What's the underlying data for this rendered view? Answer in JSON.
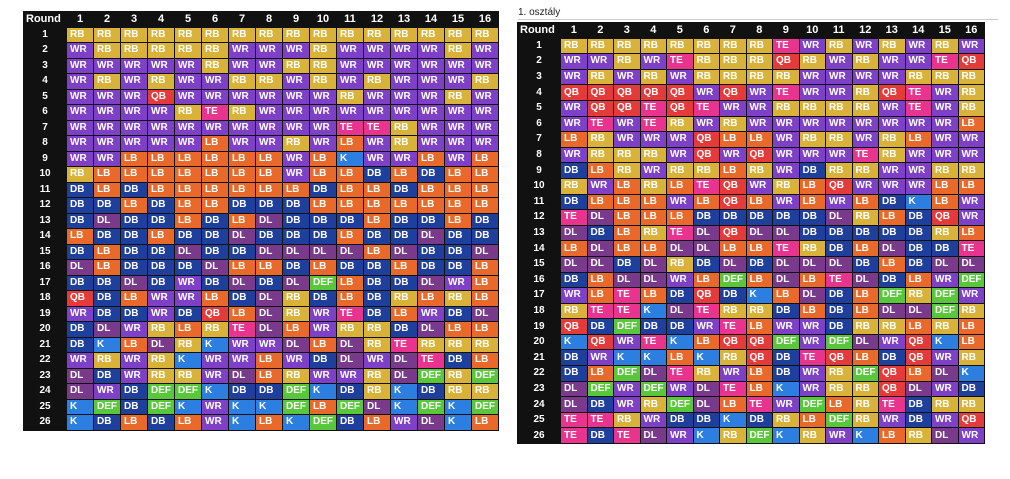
{
  "legend_colors": {
    "RB": "#d9b23a",
    "WR": "#7d40c6",
    "LB": "#e8692a",
    "DB": "#1f3f9c",
    "DL": "#7a3a8c",
    "TE": "#e8348f",
    "QB": "#e43a3a",
    "K": "#2c7fe0",
    "DEF": "#58c83a"
  },
  "left_table": {
    "header": [
      "Round",
      "1",
      "2",
      "3",
      "4",
      "5",
      "6",
      "7",
      "8",
      "9",
      "10",
      "11",
      "12",
      "13",
      "14",
      "15",
      "16"
    ],
    "rounds": [
      "1",
      "2",
      "3",
      "4",
      "5",
      "6",
      "7",
      "8",
      "9",
      "10",
      "11",
      "12",
      "13",
      "14",
      "15",
      "16",
      "17",
      "18",
      "19",
      "20",
      "21",
      "22",
      "23",
      "24",
      "25",
      "26"
    ],
    "rows": [
      [
        "RB",
        "RB",
        "RB",
        "RB",
        "RB",
        "RB",
        "RB",
        "RB",
        "RB",
        "RB",
        "RB",
        "RB",
        "RB",
        "RB",
        "RB",
        "RB"
      ],
      [
        "WR",
        "RB",
        "RB",
        "RB",
        "RB",
        "RB",
        "WR",
        "WR",
        "WR",
        "RB",
        "WR",
        "WR",
        "WR",
        "WR",
        "RB",
        "WR"
      ],
      [
        "WR",
        "WR",
        "WR",
        "WR",
        "WR",
        "RB",
        "WR",
        "WR",
        "RB",
        "RB",
        "WR",
        "WR",
        "WR",
        "WR",
        "WR",
        "WR"
      ],
      [
        "WR",
        "RB",
        "WR",
        "RB",
        "WR",
        "WR",
        "RB",
        "RB",
        "WR",
        "RB",
        "WR",
        "RB",
        "WR",
        "WR",
        "WR",
        "RB"
      ],
      [
        "WR",
        "WR",
        "WR",
        "QB",
        "WR",
        "WR",
        "WR",
        "WR",
        "WR",
        "WR",
        "RB",
        "WR",
        "WR",
        "WR",
        "RB",
        "WR"
      ],
      [
        "WR",
        "WR",
        "WR",
        "WR",
        "RB",
        "TE",
        "RB",
        "WR",
        "WR",
        "WR",
        "WR",
        "WR",
        "WR",
        "WR",
        "WR",
        "WR"
      ],
      [
        "WR",
        "WR",
        "WR",
        "WR",
        "WR",
        "WR",
        "WR",
        "WR",
        "WR",
        "WR",
        "TE",
        "TE",
        "RB",
        "WR",
        "WR",
        "WR"
      ],
      [
        "WR",
        "WR",
        "WR",
        "WR",
        "WR",
        "LB",
        "WR",
        "WR",
        "RB",
        "WR",
        "LB",
        "WR",
        "RB",
        "WR",
        "WR",
        "WR"
      ],
      [
        "WR",
        "WR",
        "LB",
        "LB",
        "LB",
        "LB",
        "LB",
        "LB",
        "WR",
        "LB",
        "K",
        "WR",
        "WR",
        "LB",
        "WR",
        "LB"
      ],
      [
        "RB",
        "LB",
        "LB",
        "LB",
        "LB",
        "LB",
        "LB",
        "LB",
        "WR",
        "LB",
        "LB",
        "DB",
        "LB",
        "DB",
        "LB",
        "LB"
      ],
      [
        "DB",
        "LB",
        "DB",
        "LB",
        "LB",
        "LB",
        "LB",
        "LB",
        "LB",
        "DB",
        "LB",
        "LB",
        "DB",
        "LB",
        "LB",
        "LB"
      ],
      [
        "DB",
        "DB",
        "LB",
        "DB",
        "LB",
        "LB",
        "DB",
        "DB",
        "DB",
        "LB",
        "LB",
        "LB",
        "LB",
        "LB",
        "LB",
        "LB"
      ],
      [
        "DB",
        "DL",
        "DB",
        "DB",
        "LB",
        "DB",
        "LB",
        "DL",
        "DB",
        "DB",
        "DB",
        "LB",
        "DB",
        "DB",
        "LB",
        "DB"
      ],
      [
        "LB",
        "DB",
        "DB",
        "LB",
        "DB",
        "DB",
        "DL",
        "DB",
        "DB",
        "DB",
        "LB",
        "DB",
        "DB",
        "DL",
        "DB",
        "DB"
      ],
      [
        "DB",
        "LB",
        "DB",
        "DB",
        "DL",
        "DB",
        "DB",
        "DL",
        "DL",
        "DL",
        "DL",
        "LB",
        "DL",
        "DB",
        "DB",
        "DL"
      ],
      [
        "DL",
        "LB",
        "DB",
        "DB",
        "DB",
        "DL",
        "LB",
        "LB",
        "DB",
        "LB",
        "DB",
        "DB",
        "LB",
        "DB",
        "DB",
        "LB"
      ],
      [
        "DB",
        "DB",
        "DL",
        "DB",
        "WR",
        "DB",
        "DL",
        "DB",
        "DL",
        "DEF",
        "LB",
        "DB",
        "DB",
        "DL",
        "WR",
        "LB"
      ],
      [
        "QB",
        "DB",
        "LB",
        "WR",
        "WR",
        "LB",
        "DB",
        "DL",
        "RB",
        "DB",
        "LB",
        "DB",
        "RB",
        "LB",
        "RB",
        "LB"
      ],
      [
        "WR",
        "DB",
        "DB",
        "WR",
        "DB",
        "QB",
        "LB",
        "DL",
        "RB",
        "WR",
        "TE",
        "DB",
        "LB",
        "WR",
        "DB",
        "DL"
      ],
      [
        "DB",
        "DL",
        "WR",
        "RB",
        "LB",
        "RB",
        "TE",
        "DL",
        "LB",
        "WR",
        "RB",
        "RB",
        "DB",
        "DL",
        "LB",
        "LB"
      ],
      [
        "DB",
        "K",
        "LB",
        "DL",
        "RB",
        "K",
        "WR",
        "WR",
        "DL",
        "LB",
        "DL",
        "RB",
        "TE",
        "RB",
        "RB",
        "RB"
      ],
      [
        "WR",
        "RB",
        "WR",
        "RB",
        "K",
        "WR",
        "WR",
        "LB",
        "WR",
        "DB",
        "DL",
        "WR",
        "DL",
        "TE",
        "DB",
        "LB"
      ],
      [
        "DL",
        "DB",
        "WR",
        "RB",
        "RB",
        "WR",
        "DL",
        "LB",
        "RB",
        "WR",
        "WR",
        "RB",
        "DL",
        "DEF",
        "RB",
        "DEF"
      ],
      [
        "DL",
        "WR",
        "DB",
        "DEF",
        "DEF",
        "K",
        "DB",
        "DB",
        "DEF",
        "K",
        "DB",
        "RB",
        "K",
        "DB",
        "RB",
        "RB"
      ],
      [
        "K",
        "DEF",
        "DB",
        "DEF",
        "K",
        "WR",
        "K",
        "K",
        "DEF",
        "LB",
        "DEF",
        "DL",
        "K",
        "DEF",
        "K",
        "DEF"
      ],
      [
        "K",
        "DB",
        "LB",
        "DB",
        "LB",
        "WR",
        "K",
        "LB",
        "K",
        "DEF",
        "DB",
        "LB",
        "WR",
        "DL",
        "K",
        "LB"
      ]
    ]
  },
  "right_table": {
    "caption": "1. osztály",
    "header": [
      "Round",
      "1",
      "2",
      "3",
      "4",
      "5",
      "6",
      "7",
      "8",
      "9",
      "10",
      "11",
      "12",
      "13",
      "14",
      "15",
      "16"
    ],
    "rounds": [
      "1",
      "2",
      "3",
      "4",
      "5",
      "6",
      "7",
      "8",
      "9",
      "10",
      "11",
      "12",
      "13",
      "14",
      "15",
      "16",
      "17",
      "18",
      "19",
      "20",
      "21",
      "22",
      "23",
      "24",
      "25",
      "26"
    ],
    "rows": [
      [
        "RB",
        "RB",
        "RB",
        "RB",
        "RB",
        "RB",
        "RB",
        "RB",
        "TE",
        "WR",
        "RB",
        "WR",
        "RB",
        "WR",
        "RB",
        "WR"
      ],
      [
        "WR",
        "WR",
        "RB",
        "WR",
        "TE",
        "RB",
        "RB",
        "RB",
        "QB",
        "RB",
        "WR",
        "RB",
        "WR",
        "WR",
        "TE",
        "QB"
      ],
      [
        "WR",
        "RB",
        "WR",
        "RB",
        "WR",
        "RB",
        "RB",
        "RB",
        "RB",
        "WR",
        "WR",
        "WR",
        "WR",
        "RB",
        "RB",
        "RB"
      ],
      [
        "QB",
        "QB",
        "QB",
        "QB",
        "QB",
        "WR",
        "QB",
        "WR",
        "TE",
        "WR",
        "WR",
        "RB",
        "QB",
        "TE",
        "WR",
        "RB"
      ],
      [
        "WR",
        "QB",
        "QB",
        "TE",
        "QB",
        "TE",
        "WR",
        "WR",
        "RB",
        "RB",
        "RB",
        "RB",
        "WR",
        "TE",
        "WR",
        "RB"
      ],
      [
        "WR",
        "TE",
        "WR",
        "TE",
        "RB",
        "WR",
        "RB",
        "WR",
        "WR",
        "WR",
        "WR",
        "WR",
        "WR",
        "WR",
        "WR",
        "LB"
      ],
      [
        "LB",
        "RB",
        "WR",
        "WR",
        "WR",
        "QB",
        "LB",
        "LB",
        "WR",
        "RB",
        "RB",
        "WR",
        "RB",
        "LB",
        "WR",
        "WR"
      ],
      [
        "WR",
        "RB",
        "RB",
        "RB",
        "WR",
        "QB",
        "WR",
        "QB",
        "WR",
        "WR",
        "WR",
        "TE",
        "RB",
        "WR",
        "WR",
        "WR"
      ],
      [
        "DB",
        "LB",
        "RB",
        "WR",
        "RB",
        "RB",
        "LB",
        "RB",
        "WR",
        "DB",
        "RB",
        "RB",
        "WR",
        "WR",
        "RB",
        "RB"
      ],
      [
        "RB",
        "WR",
        "LB",
        "RB",
        "LB",
        "TE",
        "QB",
        "WR",
        "RB",
        "LB",
        "QB",
        "WR",
        "WR",
        "WR",
        "LB",
        "LB"
      ],
      [
        "DB",
        "LB",
        "LB",
        "LB",
        "WR",
        "LB",
        "QB",
        "LB",
        "WR",
        "LB",
        "WR",
        "LB",
        "DB",
        "K",
        "LB",
        "WR"
      ],
      [
        "TE",
        "DL",
        "LB",
        "LB",
        "LB",
        "DB",
        "DB",
        "DB",
        "DB",
        "DB",
        "DL",
        "RB",
        "LB",
        "DB",
        "QB",
        "WR"
      ],
      [
        "DL",
        "DB",
        "LB",
        "RB",
        "TE",
        "DL",
        "QB",
        "DL",
        "DL",
        "DB",
        "DB",
        "DB",
        "DB",
        "DB",
        "RB",
        "LB"
      ],
      [
        "LB",
        "DL",
        "LB",
        "LB",
        "DL",
        "DL",
        "LB",
        "LB",
        "TE",
        "RB",
        "DB",
        "LB",
        "DL",
        "DB",
        "DB",
        "TE"
      ],
      [
        "DL",
        "DL",
        "DB",
        "DL",
        "RB",
        "DB",
        "DL",
        "DB",
        "DL",
        "DL",
        "DL",
        "DB",
        "LB",
        "DB",
        "DL",
        "DL"
      ],
      [
        "DB",
        "LB",
        "DL",
        "DL",
        "WR",
        "LB",
        "DEF",
        "LB",
        "DL",
        "LB",
        "TE",
        "DL",
        "DB",
        "LB",
        "WR",
        "DEF"
      ],
      [
        "WR",
        "LB",
        "TE",
        "LB",
        "DB",
        "QB",
        "DB",
        "K",
        "LB",
        "DL",
        "DB",
        "LB",
        "DEF",
        "RB",
        "DEF",
        "WR"
      ],
      [
        "RB",
        "TE",
        "TE",
        "K",
        "DL",
        "TE",
        "RB",
        "RB",
        "DB",
        "LB",
        "DB",
        "LB",
        "DL",
        "DL",
        "DEF",
        "RB"
      ],
      [
        "QB",
        "DB",
        "DEF",
        "DB",
        "DB",
        "WR",
        "TE",
        "LB",
        "WR",
        "WR",
        "DB",
        "RB",
        "RB",
        "LB",
        "RB",
        "LB"
      ],
      [
        "K",
        "QB",
        "WR",
        "TE",
        "K",
        "LB",
        "QB",
        "QB",
        "DEF",
        "WR",
        "DEF",
        "DL",
        "WR",
        "QB",
        "K",
        "LB"
      ],
      [
        "DB",
        "WR",
        "K",
        "K",
        "LB",
        "K",
        "RB",
        "QB",
        "DB",
        "TE",
        "QB",
        "LB",
        "DB",
        "QB",
        "WR",
        "RB"
      ],
      [
        "DB",
        "LB",
        "DEF",
        "DL",
        "TE",
        "RB",
        "WR",
        "LB",
        "DB",
        "WR",
        "RB",
        "DEF",
        "QB",
        "LB",
        "DL",
        "K"
      ],
      [
        "DL",
        "DEF",
        "WR",
        "DEF",
        "WR",
        "DL",
        "TE",
        "LB",
        "K",
        "WR",
        "RB",
        "RB",
        "QB",
        "DL",
        "WR",
        "DB"
      ],
      [
        "DL",
        "DB",
        "WR",
        "RB",
        "DEF",
        "DL",
        "LB",
        "TE",
        "WR",
        "DEF",
        "LB",
        "RB",
        "TE",
        "DB",
        "RB",
        "RB"
      ],
      [
        "TE",
        "TE",
        "RB",
        "WR",
        "DB",
        "DB",
        "K",
        "DB",
        "RB",
        "LB",
        "DEF",
        "RB",
        "WR",
        "DB",
        "WR",
        "QB"
      ],
      [
        "TE",
        "DB",
        "TE",
        "DL",
        "WR",
        "K",
        "RB",
        "DEF",
        "K",
        "RB",
        "WR",
        "K",
        "LB",
        "RB",
        "DL",
        "WR"
      ]
    ]
  }
}
